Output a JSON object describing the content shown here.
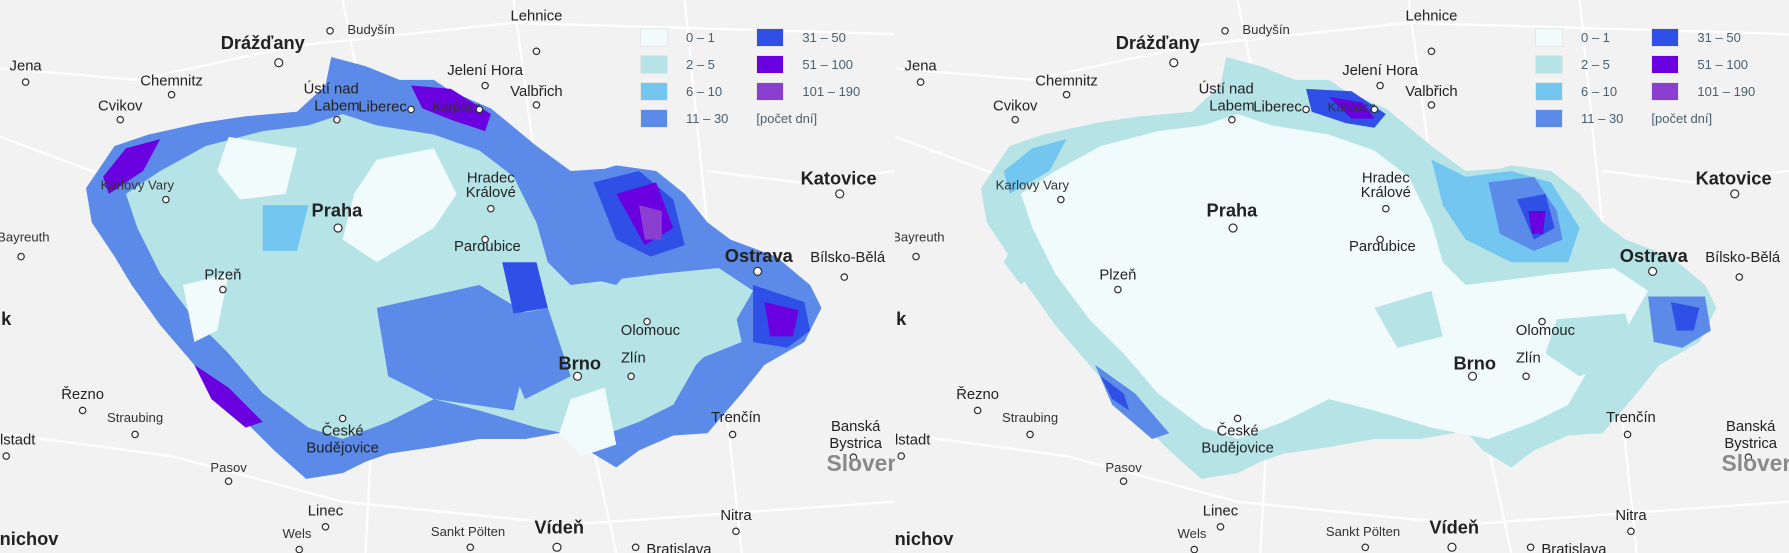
{
  "legend": {
    "items": [
      {
        "label": "0 – 1",
        "color": "#f1fbfc"
      },
      {
        "label": "31 – 50",
        "color": "#2f4fe6"
      },
      {
        "label": "2 – 5",
        "color": "#b5e3e6"
      },
      {
        "label": "51 – 100",
        "color": "#6a00e0"
      },
      {
        "label": "6 – 10",
        "color": "#72c6f0"
      },
      {
        "label": "101 – 190",
        "color": "#8a3fd0"
      },
      {
        "label": "11 – 30",
        "color": "#5b8ae8"
      }
    ],
    "unit": "[počet dní]"
  },
  "cities": [
    "Drážďany",
    "Budyšín",
    "Lehnice",
    "Jena",
    "Chemnitz",
    "Cvikov",
    "Ústí nad",
    "Labem",
    "Jelení Hora",
    "Valbřich",
    "Liberec",
    "Karpacz",
    "Karlovy Vary",
    "Hradec",
    "Králové",
    "Praha",
    "Katovice",
    "Bayreuth",
    "Pardubice",
    "Ostrava",
    "Bílsko-Bělá",
    "Plzeň",
    "Olomouc",
    "k",
    "Brno",
    "Zlín",
    "Řezno",
    "Straubing",
    "Trenčín",
    "České",
    "Budějovice",
    "lstadt",
    "Banská",
    "Bystrica",
    "Slover",
    "Pasov",
    "Linec",
    "Wels",
    "Sankt Pölten",
    "Vídeň",
    "Nitra",
    "Bratislava",
    "nichov"
  ],
  "panels": [
    {
      "name": "left-map"
    },
    {
      "name": "right-map"
    }
  ]
}
